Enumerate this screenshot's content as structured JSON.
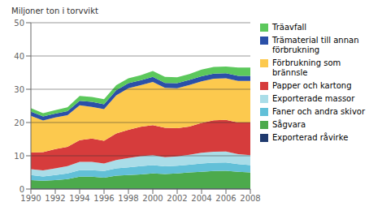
{
  "chart_data": {
    "type": "area",
    "stacked": true,
    "ylabel": "Miljoner ton i torvvikt",
    "x": [
      1990,
      1991,
      1992,
      1993,
      1994,
      1995,
      1996,
      1997,
      1998,
      1999,
      2000,
      2001,
      2002,
      2003,
      2004,
      2005,
      2006,
      2007,
      2008
    ],
    "series": [
      {
        "name": "Exporterad råvirke",
        "color": "#1f3a6e",
        "values": [
          0.2,
          0.2,
          0.2,
          0.2,
          0.2,
          0.2,
          0.2,
          0.2,
          0.2,
          0.2,
          0.2,
          0.2,
          0.2,
          0.2,
          0.2,
          0.2,
          0.2,
          0.2,
          0.2
        ]
      },
      {
        "name": "Sågvara",
        "color": "#4caa4c",
        "values": [
          2.5,
          2.3,
          2.5,
          2.8,
          3.5,
          3.5,
          3.2,
          3.8,
          4.0,
          4.2,
          4.5,
          4.3,
          4.5,
          4.8,
          5.0,
          5.2,
          5.3,
          5.0,
          4.8
        ]
      },
      {
        "name": "Faner och andra skivor",
        "color": "#62c0d8",
        "values": [
          1.5,
          1.3,
          1.5,
          1.7,
          2.0,
          2.0,
          2.0,
          2.2,
          2.3,
          2.5,
          2.5,
          2.3,
          2.3,
          2.3,
          2.5,
          2.5,
          2.5,
          2.3,
          2.2
        ]
      },
      {
        "name": "Exporterade massor",
        "color": "#aadde8",
        "values": [
          1.8,
          1.8,
          2.0,
          2.2,
          2.5,
          2.5,
          2.3,
          2.5,
          2.8,
          3.0,
          3.0,
          2.8,
          2.8,
          3.0,
          3.2,
          3.3,
          3.3,
          3.0,
          3.0
        ]
      },
      {
        "name": "Papper och kartong",
        "color": "#d63c3c",
        "values": [
          5.0,
          5.5,
          5.8,
          5.8,
          6.5,
          7.0,
          6.8,
          8.0,
          8.5,
          8.8,
          9.0,
          8.8,
          8.5,
          8.5,
          9.0,
          9.5,
          9.5,
          9.5,
          9.8
        ]
      },
      {
        "name": "Förbrukning som brännsle",
        "color": "#fcc94e",
        "values": [
          11.0,
          9.5,
          9.5,
          9.5,
          10.5,
          9.5,
          9.5,
          11.5,
          12.5,
          12.5,
          13.0,
          12.0,
          12.0,
          12.5,
          12.5,
          12.5,
          12.5,
          12.5,
          12.5
        ]
      },
      {
        "name": "Trämaterial till annan\nförbrukning",
        "color": "#2b50a8",
        "values": [
          1.3,
          1.2,
          1.2,
          1.2,
          1.3,
          1.5,
          1.5,
          1.5,
          1.5,
          1.5,
          1.5,
          1.5,
          1.5,
          1.5,
          1.5,
          1.5,
          1.5,
          1.5,
          1.5
        ]
      },
      {
        "name": "Träavfall",
        "color": "#5cc85c",
        "values": [
          1.0,
          1.0,
          1.0,
          1.2,
          1.5,
          1.5,
          1.5,
          1.5,
          1.5,
          1.5,
          1.8,
          1.8,
          1.8,
          1.8,
          2.0,
          2.0,
          2.0,
          2.5,
          2.5
        ]
      }
    ],
    "xlim": [
      1990,
      2008
    ],
    "xticks": [
      1990,
      1992,
      1994,
      1996,
      1998,
      2000,
      2002,
      2004,
      2006,
      2008
    ],
    "ylim": [
      0,
      50
    ],
    "yticks": [
      0,
      10,
      20,
      30,
      40,
      50
    ],
    "grid": true,
    "legend": "right"
  }
}
